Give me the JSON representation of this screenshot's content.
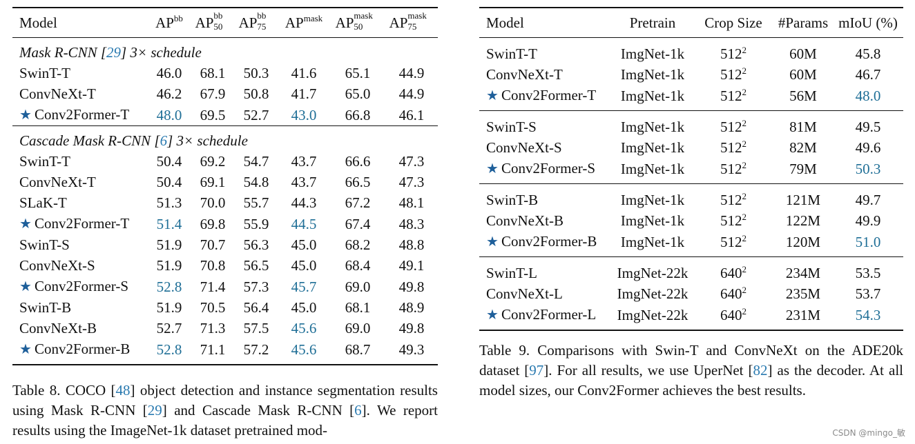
{
  "table8": {
    "header": {
      "model": "Model",
      "ap_base": "AP",
      "bb": "bb",
      "mask": "mask",
      "s50": "50",
      "s75": "75"
    },
    "sections": [
      {
        "title_a": "Mask R-CNN [",
        "title_ref": "29",
        "title_b": "] 3× schedule",
        "rows": [
          {
            "model": "SwinT-T",
            "star": false,
            "vals": [
              "46.0",
              "68.1",
              "50.3",
              "41.6",
              "65.1",
              "44.9"
            ],
            "best": [
              false,
              false,
              false,
              false,
              false,
              false
            ]
          },
          {
            "model": "ConvNeXt-T",
            "star": false,
            "vals": [
              "46.2",
              "67.9",
              "50.8",
              "41.7",
              "65.0",
              "44.9"
            ],
            "best": [
              false,
              false,
              false,
              false,
              false,
              false
            ]
          },
          {
            "model": "Conv2Former-T",
            "star": true,
            "vals": [
              "48.0",
              "69.5",
              "52.7",
              "43.0",
              "66.8",
              "46.1"
            ],
            "best": [
              true,
              false,
              false,
              true,
              false,
              false
            ]
          }
        ]
      },
      {
        "title_a": "Cascade Mask R-CNN [",
        "title_ref": "6",
        "title_b": "] 3× schedule",
        "rows": [
          {
            "model": "SwinT-T",
            "star": false,
            "vals": [
              "50.4",
              "69.2",
              "54.7",
              "43.7",
              "66.6",
              "47.3"
            ],
            "best": [
              false,
              false,
              false,
              false,
              false,
              false
            ]
          },
          {
            "model": "ConvNeXt-T",
            "star": false,
            "vals": [
              "50.4",
              "69.1",
              "54.8",
              "43.7",
              "66.5",
              "47.3"
            ],
            "best": [
              false,
              false,
              false,
              false,
              false,
              false
            ]
          },
          {
            "model": "SLaK-T",
            "star": false,
            "vals": [
              "51.3",
              "70.0",
              "55.7",
              "44.3",
              "67.2",
              "48.1"
            ],
            "best": [
              false,
              false,
              false,
              false,
              false,
              false
            ]
          },
          {
            "model": "Conv2Former-T",
            "star": true,
            "vals": [
              "51.4",
              "69.8",
              "55.9",
              "44.5",
              "67.4",
              "48.3"
            ],
            "best": [
              true,
              false,
              false,
              true,
              false,
              false
            ]
          },
          {
            "model": "SwinT-S",
            "star": false,
            "vals": [
              "51.9",
              "70.7",
              "56.3",
              "45.0",
              "68.2",
              "48.8"
            ],
            "best": [
              false,
              false,
              false,
              false,
              false,
              false
            ]
          },
          {
            "model": "ConvNeXt-S",
            "star": false,
            "vals": [
              "51.9",
              "70.8",
              "56.5",
              "45.0",
              "68.4",
              "49.1"
            ],
            "best": [
              false,
              false,
              false,
              false,
              false,
              false
            ]
          },
          {
            "model": "Conv2Former-S",
            "star": true,
            "vals": [
              "52.8",
              "71.4",
              "57.3",
              "45.7",
              "69.0",
              "49.8"
            ],
            "best": [
              true,
              false,
              false,
              true,
              false,
              false
            ]
          },
          {
            "model": "SwinT-B",
            "star": false,
            "vals": [
              "51.9",
              "70.5",
              "56.4",
              "45.0",
              "68.1",
              "48.9"
            ],
            "best": [
              false,
              false,
              false,
              false,
              false,
              false
            ]
          },
          {
            "model": "ConvNeXt-B",
            "star": false,
            "vals": [
              "52.7",
              "71.3",
              "57.5",
              "45.6",
              "69.0",
              "49.8"
            ],
            "best": [
              false,
              false,
              false,
              true,
              false,
              false
            ]
          },
          {
            "model": "Conv2Former-B",
            "star": true,
            "vals": [
              "52.8",
              "71.1",
              "57.2",
              "45.6",
              "68.7",
              "49.3"
            ],
            "best": [
              true,
              false,
              false,
              true,
              false,
              false
            ]
          }
        ]
      }
    ],
    "caption": {
      "p1": "Table 8.  COCO [",
      "r1": "48",
      "p2": "] object detection and instance segmentation results using Mask R-CNN [",
      "r2": "29",
      "p3": "] and Cascade Mask R-CNN [",
      "r3": "6",
      "p4": "]. We report results using the ImageNet-1k dataset pretrained mod-"
    }
  },
  "table9": {
    "header": {
      "model": "Model",
      "pretrain": "Pretrain",
      "crop": "Crop Size",
      "params": "#Params",
      "miou": "mIoU (%)"
    },
    "groups": [
      [
        {
          "model": "SwinT-T",
          "star": false,
          "pretrain": "ImgNet-1k",
          "crop": "512",
          "params": "60M",
          "miou": "45.8",
          "best": false
        },
        {
          "model": "ConvNeXt-T",
          "star": false,
          "pretrain": "ImgNet-1k",
          "crop": "512",
          "params": "60M",
          "miou": "46.7",
          "best": false
        },
        {
          "model": "Conv2Former-T",
          "star": true,
          "pretrain": "ImgNet-1k",
          "crop": "512",
          "params": "56M",
          "miou": "48.0",
          "best": true
        }
      ],
      [
        {
          "model": "SwinT-S",
          "star": false,
          "pretrain": "ImgNet-1k",
          "crop": "512",
          "params": "81M",
          "miou": "49.5",
          "best": false
        },
        {
          "model": "ConvNeXt-S",
          "star": false,
          "pretrain": "ImgNet-1k",
          "crop": "512",
          "params": "82M",
          "miou": "49.6",
          "best": false
        },
        {
          "model": "Conv2Former-S",
          "star": true,
          "pretrain": "ImgNet-1k",
          "crop": "512",
          "params": "79M",
          "miou": "50.3",
          "best": true
        }
      ],
      [
        {
          "model": "SwinT-B",
          "star": false,
          "pretrain": "ImgNet-1k",
          "crop": "512",
          "params": "121M",
          "miou": "49.7",
          "best": false
        },
        {
          "model": "ConvNeXt-B",
          "star": false,
          "pretrain": "ImgNet-1k",
          "crop": "512",
          "params": "122M",
          "miou": "49.9",
          "best": false
        },
        {
          "model": "Conv2Former-B",
          "star": true,
          "pretrain": "ImgNet-1k",
          "crop": "512",
          "params": "120M",
          "miou": "51.0",
          "best": true
        }
      ],
      [
        {
          "model": "SwinT-L",
          "star": false,
          "pretrain": "ImgNet-22k",
          "crop": "640",
          "params": "234M",
          "miou": "53.5",
          "best": false
        },
        {
          "model": "ConvNeXt-L",
          "star": false,
          "pretrain": "ImgNet-22k",
          "crop": "640",
          "params": "235M",
          "miou": "53.7",
          "best": false
        },
        {
          "model": "Conv2Former-L",
          "star": true,
          "pretrain": "ImgNet-22k",
          "crop": "640",
          "params": "231M",
          "miou": "54.3",
          "best": true
        }
      ]
    ],
    "caption": {
      "p1": "Table 9.  Comparisons with Swin-T and ConvNeXt on the ADE20k dataset [",
      "r1": "97",
      "p2": "].  For all results, we use UperNet [",
      "r2": "82",
      "p3": "] as the decoder. At all model sizes, our Conv2Former achieves the best results."
    }
  },
  "symbols": {
    "star": "★",
    "squared": "2"
  },
  "watermark": "CSDN @mingo_敏"
}
